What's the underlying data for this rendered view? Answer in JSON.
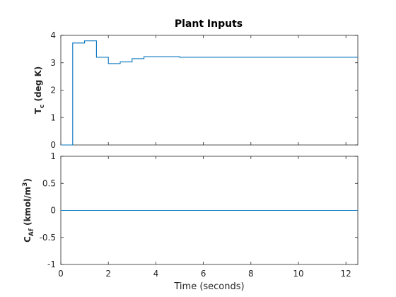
{
  "figure": {
    "title": "Plant Inputs",
    "xlabel": "Time (seconds)"
  },
  "colors": {
    "series": "#0072BD",
    "axis": "#262626"
  },
  "chart_data": [
    {
      "type": "line",
      "step": true,
      "ylabel": {
        "main": "T",
        "sub": "c",
        "rest": " (deg K)"
      },
      "xlim": [
        0,
        12.5
      ],
      "ylim": [
        0,
        4
      ],
      "xticks": [
        0,
        2,
        4,
        6,
        8,
        10,
        12
      ],
      "xtick_labels": [],
      "yticks": [
        0,
        1,
        2,
        3,
        4
      ],
      "ytick_labels": [
        "0",
        "1",
        "2",
        "3",
        "4"
      ],
      "grid": false,
      "series": [
        {
          "x": [
            0,
            0.5,
            1.0,
            1.5,
            2.0,
            2.5,
            3.0,
            3.5,
            4.0,
            5.0,
            12.5
          ],
          "y": [
            0,
            3.72,
            3.8,
            3.2,
            2.97,
            3.03,
            3.15,
            3.22,
            3.22,
            3.2,
            3.2
          ]
        }
      ]
    },
    {
      "type": "line",
      "step": true,
      "ylabel": {
        "main": "C",
        "sub": "Af",
        "rest": " (kmol/m",
        "sup": "3",
        "end": ")"
      },
      "xlim": [
        0,
        12.5
      ],
      "ylim": [
        -1,
        1
      ],
      "xticks": [
        0,
        2,
        4,
        6,
        8,
        10,
        12
      ],
      "xtick_labels": [
        "0",
        "2",
        "4",
        "6",
        "8",
        "10",
        "12"
      ],
      "yticks": [
        -1,
        -0.5,
        0,
        0.5,
        1
      ],
      "ytick_labels": [
        "-1",
        "-0.5",
        "0",
        "0.5",
        "1"
      ],
      "grid": false,
      "series": [
        {
          "x": [
            0,
            12.5
          ],
          "y": [
            0,
            0
          ]
        }
      ]
    }
  ]
}
